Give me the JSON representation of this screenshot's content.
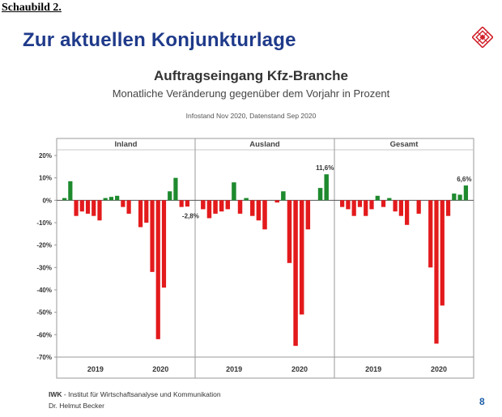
{
  "caption": "Schaubild 2.",
  "slide_title": "Zur aktuellen Konjunkturlage",
  "logo_icon": "iwk-logo-icon",
  "footer": {
    "org_abbr": "IWK",
    "org_text": " - Institut  für  Wirtschaftsanalyse  und  Kommunikation",
    "author": "Dr. Helmut Becker",
    "page_number": "8"
  },
  "chart_data": {
    "type": "bar",
    "title": "Auftragseingang Kfz-Branche",
    "subtitle": "Monatliche Veränderung gegenüber dem Vorjahr in Prozent",
    "info": "Infostand Nov 2020, Datenstand Sep 2020",
    "ylim": [
      -70,
      20
    ],
    "yticks": [
      "20%",
      "10%",
      "0%",
      "-10%",
      "-20%",
      "-30%",
      "-40%",
      "-50%",
      "-60%",
      "-70%"
    ],
    "colors": {
      "positive": "#1e8a2e",
      "negative": "#e31a1c"
    },
    "panels": [
      {
        "name": "Inland",
        "year_labels": [
          "2019",
          "2020"
        ],
        "values": [
          1,
          8.5,
          -7,
          -5,
          -6,
          -7,
          -9,
          1,
          1.5,
          2,
          -3,
          -6,
          0,
          -12,
          -10,
          -32,
          -62,
          -39,
          4,
          10,
          -3,
          -2.8
        ],
        "annotation": {
          "text": "-2,8%",
          "index": 21
        }
      },
      {
        "name": "Ausland",
        "year_labels": [
          "2019",
          "2020"
        ],
        "values": [
          -4,
          -8,
          -6,
          -5,
          -4,
          8,
          -6,
          1,
          -7,
          -9,
          -13,
          0,
          -1,
          4,
          -28,
          -65,
          -51,
          -13,
          0,
          5.5,
          11.6
        ],
        "annotation": {
          "text": "11,6%",
          "index": 20
        }
      },
      {
        "name": "Gesamt",
        "year_labels": [
          "2019",
          "2020"
        ],
        "values": [
          -3,
          -4,
          -7,
          -3,
          -7,
          -4,
          2,
          -3,
          1,
          -5,
          -7,
          -11,
          0,
          -6,
          0,
          -30,
          -64,
          -47,
          -7,
          3,
          2.5,
          6.6
        ],
        "annotation": {
          "text": "6,6%",
          "index": 21
        }
      }
    ]
  }
}
